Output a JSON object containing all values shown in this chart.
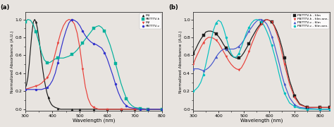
{
  "panel_a": {
    "title": "(a)",
    "xlabel": "Wavelength (nm)",
    "ylabel": "Normalized Absorbance (A.U.)",
    "xlim": [
      300,
      800
    ],
    "ylim": [
      -0.02,
      1.08
    ],
    "xticks": [
      300,
      400,
      500,
      600,
      700,
      800
    ],
    "series": [
      {
        "label": "M1",
        "color": "#1a1a1a",
        "marker": "^",
        "x": [
          300,
          305,
          310,
          315,
          320,
          325,
          330,
          335,
          340,
          345,
          350,
          355,
          360,
          365,
          370,
          375,
          380,
          385,
          390,
          395,
          400,
          410,
          420,
          430,
          440,
          450,
          460,
          470,
          480,
          490,
          500,
          520,
          550,
          600,
          650,
          700,
          750,
          800
        ],
        "y": [
          0.23,
          0.27,
          0.35,
          0.5,
          0.68,
          0.85,
          0.97,
          1.0,
          0.97,
          0.9,
          0.8,
          0.68,
          0.55,
          0.43,
          0.33,
          0.25,
          0.18,
          0.13,
          0.09,
          0.06,
          0.04,
          0.02,
          0.01,
          0.0,
          0.0,
          0.0,
          0.0,
          0.0,
          0.0,
          0.0,
          0.0,
          0.0,
          0.0,
          0.0,
          0.0,
          0.0,
          0.0,
          0.0
        ]
      },
      {
        "label": "PBTTTV-h",
        "color": "#00b09b",
        "marker": "s",
        "x": [
          300,
          310,
          320,
          330,
          340,
          350,
          360,
          370,
          380,
          390,
          400,
          410,
          420,
          430,
          440,
          450,
          460,
          470,
          480,
          490,
          500,
          510,
          520,
          530,
          540,
          550,
          560,
          570,
          580,
          590,
          600,
          610,
          620,
          630,
          640,
          650,
          660,
          670,
          680,
          690,
          700,
          720,
          750,
          800
        ],
        "y": [
          0.97,
          1.0,
          0.99,
          0.94,
          0.86,
          0.75,
          0.63,
          0.55,
          0.52,
          0.52,
          0.54,
          0.56,
          0.57,
          0.57,
          0.57,
          0.58,
          0.59,
          0.61,
          0.63,
          0.66,
          0.7,
          0.74,
          0.78,
          0.82,
          0.86,
          0.9,
          0.92,
          0.93,
          0.91,
          0.87,
          0.8,
          0.72,
          0.62,
          0.51,
          0.4,
          0.29,
          0.2,
          0.12,
          0.07,
          0.04,
          0.02,
          0.01,
          0.0,
          0.0
        ]
      },
      {
        "label": "M2",
        "color": "#e8403a",
        "marker": "v",
        "x": [
          300,
          310,
          320,
          330,
          340,
          350,
          360,
          370,
          380,
          390,
          400,
          410,
          420,
          430,
          440,
          450,
          460,
          470,
          480,
          490,
          500,
          510,
          520,
          530,
          540,
          550,
          560,
          570,
          580,
          600,
          650,
          700,
          750,
          800
        ],
        "y": [
          0.22,
          0.23,
          0.24,
          0.25,
          0.26,
          0.27,
          0.29,
          0.32,
          0.35,
          0.4,
          0.5,
          0.62,
          0.74,
          0.85,
          0.93,
          0.98,
          1.0,
          0.99,
          0.95,
          0.85,
          0.68,
          0.45,
          0.25,
          0.12,
          0.05,
          0.02,
          0.01,
          0.0,
          0.0,
          0.0,
          0.0,
          0.0,
          0.0,
          0.0
        ]
      },
      {
        "label": "PBTTTV-v",
        "color": "#3030cc",
        "marker": "o",
        "x": [
          300,
          310,
          320,
          330,
          340,
          350,
          360,
          370,
          380,
          390,
          400,
          410,
          420,
          430,
          440,
          450,
          460,
          470,
          480,
          490,
          500,
          510,
          520,
          530,
          540,
          550,
          560,
          570,
          580,
          590,
          600,
          610,
          620,
          630,
          640,
          650,
          660,
          670,
          680,
          700,
          720,
          750,
          800
        ],
        "y": [
          0.22,
          0.22,
          0.22,
          0.22,
          0.22,
          0.22,
          0.22,
          0.23,
          0.24,
          0.27,
          0.32,
          0.4,
          0.52,
          0.66,
          0.78,
          0.88,
          0.96,
          1.0,
          0.99,
          0.97,
          0.93,
          0.87,
          0.82,
          0.78,
          0.75,
          0.73,
          0.72,
          0.7,
          0.68,
          0.63,
          0.56,
          0.47,
          0.38,
          0.28,
          0.19,
          0.12,
          0.07,
          0.04,
          0.02,
          0.01,
          0.0,
          0.0,
          0.0
        ]
      }
    ]
  },
  "panel_b": {
    "title": "(b)",
    "xlabel": "Wavelength (nm)",
    "ylabel": "Normalized Absorbance (A.U.)",
    "xlim": [
      300,
      840
    ],
    "ylim": [
      -0.02,
      1.08
    ],
    "xticks": [
      300,
      400,
      500,
      600,
      700,
      800
    ],
    "series": [
      {
        "label": "PBTTTV-h - film",
        "color": "#1a1a1a",
        "marker": "s",
        "x": [
          300,
          310,
          320,
          330,
          340,
          350,
          360,
          370,
          380,
          390,
          400,
          410,
          420,
          430,
          440,
          450,
          460,
          470,
          480,
          490,
          500,
          510,
          520,
          530,
          540,
          550,
          560,
          570,
          580,
          590,
          600,
          610,
          620,
          630,
          640,
          650,
          660,
          670,
          680,
          700,
          720,
          750,
          800,
          840
        ],
        "y": [
          0.62,
          0.67,
          0.73,
          0.78,
          0.82,
          0.86,
          0.87,
          0.87,
          0.86,
          0.84,
          0.81,
          0.77,
          0.72,
          0.68,
          0.64,
          0.6,
          0.58,
          0.57,
          0.57,
          0.59,
          0.63,
          0.68,
          0.73,
          0.79,
          0.84,
          0.89,
          0.93,
          0.96,
          0.99,
          1.0,
          0.99,
          0.97,
          0.93,
          0.87,
          0.79,
          0.69,
          0.57,
          0.44,
          0.32,
          0.15,
          0.06,
          0.02,
          0.02,
          0.02
        ]
      },
      {
        "label": "PBTTTV-h - film ann.",
        "color": "#e8403a",
        "marker": "v",
        "x": [
          300,
          310,
          320,
          330,
          340,
          350,
          360,
          370,
          380,
          390,
          400,
          410,
          420,
          430,
          440,
          450,
          460,
          470,
          480,
          490,
          500,
          510,
          520,
          530,
          540,
          550,
          560,
          570,
          580,
          590,
          600,
          610,
          620,
          630,
          640,
          650,
          660,
          680,
          700,
          720,
          750,
          800,
          840
        ],
        "y": [
          0.5,
          0.57,
          0.63,
          0.69,
          0.74,
          0.78,
          0.8,
          0.8,
          0.79,
          0.77,
          0.74,
          0.69,
          0.64,
          0.59,
          0.54,
          0.5,
          0.47,
          0.45,
          0.44,
          0.46,
          0.51,
          0.57,
          0.64,
          0.72,
          0.79,
          0.86,
          0.91,
          0.95,
          0.98,
          1.0,
          0.99,
          0.97,
          0.92,
          0.84,
          0.75,
          0.63,
          0.5,
          0.28,
          0.13,
          0.05,
          0.02,
          0.02,
          0.02
        ]
      },
      {
        "label": "PBTTTV-v - film",
        "color": "#4455cc",
        "marker": "^",
        "x": [
          300,
          310,
          320,
          330,
          340,
          350,
          360,
          370,
          380,
          390,
          400,
          410,
          420,
          430,
          440,
          450,
          460,
          470,
          480,
          490,
          500,
          510,
          520,
          530,
          540,
          550,
          560,
          570,
          580,
          590,
          600,
          610,
          620,
          630,
          640,
          650,
          660,
          680,
          700,
          720,
          750,
          800,
          840
        ],
        "y": [
          0.45,
          0.45,
          0.45,
          0.44,
          0.43,
          0.44,
          0.46,
          0.49,
          0.53,
          0.58,
          0.62,
          0.65,
          0.67,
          0.67,
          0.67,
          0.67,
          0.67,
          0.68,
          0.7,
          0.73,
          0.77,
          0.82,
          0.87,
          0.91,
          0.95,
          0.98,
          1.0,
          1.0,
          0.98,
          0.95,
          0.89,
          0.81,
          0.72,
          0.61,
          0.5,
          0.38,
          0.28,
          0.13,
          0.05,
          0.02,
          0.01,
          0.0,
          0.0
        ]
      },
      {
        "label": "PBTTTV-v - film ann.",
        "color": "#00c0c0",
        "marker": "o",
        "x": [
          300,
          310,
          320,
          330,
          340,
          350,
          360,
          370,
          380,
          390,
          400,
          410,
          420,
          430,
          440,
          450,
          460,
          470,
          480,
          490,
          500,
          510,
          520,
          530,
          540,
          550,
          560,
          570,
          580,
          590,
          600,
          610,
          620,
          630,
          640,
          650,
          660,
          680,
          700,
          720,
          750,
          800,
          840
        ],
        "y": [
          0.2,
          0.22,
          0.25,
          0.3,
          0.38,
          0.5,
          0.63,
          0.76,
          0.88,
          0.96,
          0.99,
          0.97,
          0.9,
          0.8,
          0.7,
          0.62,
          0.58,
          0.58,
          0.62,
          0.69,
          0.77,
          0.85,
          0.91,
          0.96,
          0.99,
          1.0,
          0.99,
          0.97,
          0.93,
          0.87,
          0.8,
          0.71,
          0.61,
          0.5,
          0.38,
          0.27,
          0.18,
          0.07,
          0.03,
          0.01,
          0.0,
          0.0,
          0.0
        ]
      }
    ]
  }
}
